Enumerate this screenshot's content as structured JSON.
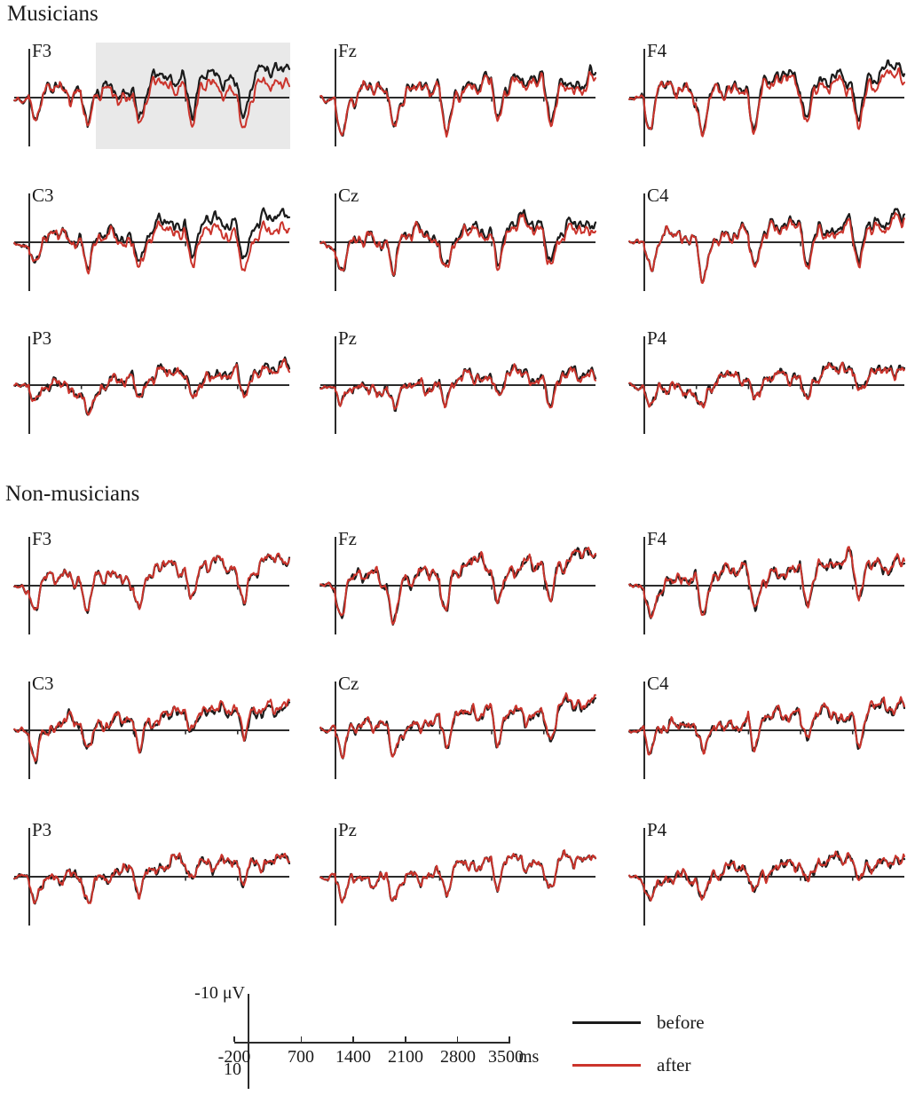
{
  "figure": {
    "kind": "ERP grand-average waveforms, 3x3 electrode grids for two groups",
    "background": "#ffffff"
  },
  "sections": {
    "musicians_title": "Musicians",
    "non_musicians_title": "Non-musicians"
  },
  "scale_bar": {
    "y_top_label": "-10 μV",
    "y_bottom_label": "10",
    "x_tick_labels": [
      "-200",
      "700",
      "1400",
      "2100",
      "2800",
      "3500"
    ],
    "x_unit_label": "ms"
  },
  "legend": {
    "items": [
      {
        "label": "before",
        "color": "#1b1b1b"
      },
      {
        "label": "after",
        "color": "#cb342c"
      }
    ]
  },
  "chart_data": {
    "type": "line",
    "x": {
      "label": "ms",
      "range": [
        -200,
        3500
      ],
      "ticks": [
        -200,
        700,
        1400,
        2100,
        2800,
        3500
      ],
      "stimulus_interval_ms": 700
    },
    "y": {
      "label": "μV",
      "range": [
        -10,
        10
      ],
      "ticks": [
        -10,
        10
      ],
      "negative_up": true
    },
    "series_names": [
      "before",
      "after"
    ],
    "colors": {
      "before": "#1b1b1b",
      "after": "#cb342c",
      "axis": "#2b2b2b",
      "highlight": "#e9e9e9"
    },
    "highlight_note": "Gray shaded significance window on Musicians F3, approx 900-3500 ms",
    "groups": [
      {
        "name": "Musicians",
        "panels": [
          {
            "electrode": "F3",
            "highlight_window_ms": [
              900,
              3500
            ],
            "spike_amp_uV": 6.2,
            "plateau_uV": 1.5,
            "early_dip_uV": 0.5,
            "noise_uV": 1.0,
            "end_drift_uV_before": -4.2,
            "end_drift_uV_after": -0.9,
            "seed": 11
          },
          {
            "electrode": "Fz",
            "highlight_window_ms": null,
            "spike_amp_uV": 7.4,
            "plateau_uV": 1.5,
            "early_dip_uV": 0.6,
            "noise_uV": 1.05,
            "end_drift_uV_before": -2.9,
            "end_drift_uV_after": -1.9,
            "seed": 12
          },
          {
            "electrode": "F4",
            "highlight_window_ms": null,
            "spike_amp_uV": 6.8,
            "plateau_uV": 1.5,
            "early_dip_uV": 0.5,
            "noise_uV": 1.0,
            "end_drift_uV_before": -3.9,
            "end_drift_uV_after": -2.1,
            "seed": 13
          },
          {
            "electrode": "C3",
            "highlight_window_ms": null,
            "spike_amp_uV": 5.6,
            "plateau_uV": 1.4,
            "early_dip_uV": 0.9,
            "noise_uV": 0.95,
            "end_drift_uV_before": -4.0,
            "end_drift_uV_after": -0.9,
            "seed": 14
          },
          {
            "electrode": "Cz",
            "highlight_window_ms": null,
            "spike_amp_uV": 6.6,
            "plateau_uV": 1.3,
            "early_dip_uV": 1.1,
            "noise_uV": 1.0,
            "end_drift_uV_before": -3.0,
            "end_drift_uV_after": -1.7,
            "seed": 15
          },
          {
            "electrode": "C4",
            "highlight_window_ms": null,
            "spike_amp_uV": 6.0,
            "plateau_uV": 1.3,
            "early_dip_uV": 0.9,
            "noise_uV": 0.95,
            "end_drift_uV_before": -3.2,
            "end_drift_uV_after": -2.1,
            "seed": 16
          },
          {
            "electrode": "P3",
            "highlight_window_ms": null,
            "spike_amp_uV": 3.6,
            "plateau_uV": 1.1,
            "early_dip_uV": 2.2,
            "noise_uV": 0.8,
            "end_drift_uV_before": -2.3,
            "end_drift_uV_after": -1.8,
            "seed": 17
          },
          {
            "electrode": "Pz",
            "highlight_window_ms": null,
            "spike_amp_uV": 4.2,
            "plateau_uV": 1.1,
            "early_dip_uV": 2.5,
            "noise_uV": 0.85,
            "end_drift_uV_before": -1.6,
            "end_drift_uV_after": -1.1,
            "seed": 18
          },
          {
            "electrode": "P4",
            "highlight_window_ms": null,
            "spike_amp_uV": 3.6,
            "plateau_uV": 1.1,
            "early_dip_uV": 2.0,
            "noise_uV": 0.8,
            "end_drift_uV_before": -2.4,
            "end_drift_uV_after": -2.1,
            "seed": 19
          }
        ]
      },
      {
        "name": "Non-musicians",
        "panels": [
          {
            "electrode": "F3",
            "highlight_window_ms": null,
            "spike_amp_uV": 6.0,
            "plateau_uV": 1.6,
            "early_dip_uV": 0.5,
            "noise_uV": 0.95,
            "end_drift_uV_before": -3.8,
            "end_drift_uV_after": -4.0,
            "seed": 21
          },
          {
            "electrode": "Fz",
            "highlight_window_ms": null,
            "spike_amp_uV": 7.0,
            "plateau_uV": 1.6,
            "early_dip_uV": 0.5,
            "noise_uV": 1.0,
            "end_drift_uV_before": -4.4,
            "end_drift_uV_after": -4.6,
            "seed": 22
          },
          {
            "electrode": "F4",
            "highlight_window_ms": null,
            "spike_amp_uV": 6.4,
            "plateau_uV": 1.6,
            "early_dip_uV": 0.5,
            "noise_uV": 0.95,
            "end_drift_uV_before": -3.8,
            "end_drift_uV_after": -4.0,
            "seed": 23
          },
          {
            "electrode": "C3",
            "highlight_window_ms": null,
            "spike_amp_uV": 5.6,
            "plateau_uV": 1.5,
            "early_dip_uV": 0.8,
            "noise_uV": 0.9,
            "end_drift_uV_before": -4.0,
            "end_drift_uV_after": -4.7,
            "seed": 24
          },
          {
            "electrode": "Cz",
            "highlight_window_ms": null,
            "spike_amp_uV": 6.4,
            "plateau_uV": 1.5,
            "early_dip_uV": 0.8,
            "noise_uV": 0.95,
            "end_drift_uV_before": -4.0,
            "end_drift_uV_after": -4.5,
            "seed": 25
          },
          {
            "electrode": "C4",
            "highlight_window_ms": null,
            "spike_amp_uV": 6.0,
            "plateau_uV": 1.4,
            "early_dip_uV": 0.8,
            "noise_uV": 0.9,
            "end_drift_uV_before": -3.6,
            "end_drift_uV_after": -4.0,
            "seed": 26
          },
          {
            "electrode": "P3",
            "highlight_window_ms": null,
            "spike_amp_uV": 3.6,
            "plateau_uV": 1.1,
            "early_dip_uV": 2.4,
            "noise_uV": 0.8,
            "end_drift_uV_before": -3.0,
            "end_drift_uV_after": -3.1,
            "seed": 27
          },
          {
            "electrode": "Pz",
            "highlight_window_ms": null,
            "spike_amp_uV": 4.4,
            "plateau_uV": 1.2,
            "early_dip_uV": 2.6,
            "noise_uV": 0.85,
            "end_drift_uV_before": -3.0,
            "end_drift_uV_after": -3.0,
            "seed": 28
          },
          {
            "electrode": "P4",
            "highlight_window_ms": null,
            "spike_amp_uV": 3.6,
            "plateau_uV": 1.1,
            "early_dip_uV": 2.0,
            "noise_uV": 0.8,
            "end_drift_uV_before": -2.9,
            "end_drift_uV_after": -3.0,
            "seed": 29
          }
        ]
      }
    ]
  }
}
